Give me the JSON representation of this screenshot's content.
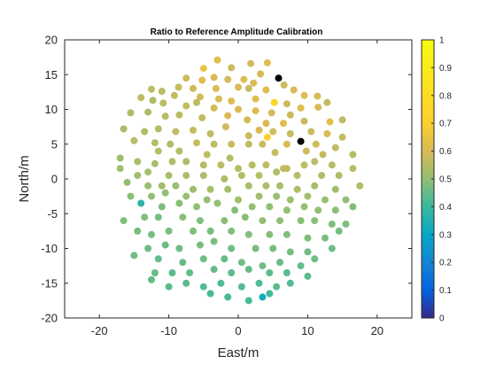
{
  "chart_data": {
    "type": "scatter",
    "title": "Ratio to Reference Amplitude Calibration",
    "xlabel": "East/m",
    "ylabel": "North/m",
    "xlim": [
      -25,
      25
    ],
    "ylim": [
      -20,
      20
    ],
    "xticks": [
      "-20",
      "-10",
      "0",
      "10",
      "20"
    ],
    "yticks": [
      "-20",
      "-15",
      "-10",
      "-5",
      "0",
      "5",
      "10",
      "15",
      "20"
    ],
    "colorbar": {
      "range": [
        0,
        1
      ],
      "ticks": [
        "0",
        "0.1",
        "0.2",
        "0.3",
        "0.4",
        "0.5",
        "0.6",
        "0.7",
        "0.8",
        "0.9",
        "1"
      ],
      "colormap": "parula",
      "location": "right"
    },
    "grid": false,
    "flagged_color": "#000000",
    "points": [
      [
        -3.0,
        17.1,
        0.62
      ],
      [
        1.8,
        16.6,
        0.59
      ],
      [
        4.2,
        16.7,
        0.62
      ],
      [
        -5.0,
        15.9,
        0.65
      ],
      [
        -1.0,
        16.0,
        0.58
      ],
      [
        0.8,
        14.3,
        0.61
      ],
      [
        3.2,
        15.1,
        0.6
      ],
      [
        5.8,
        14.5,
        null
      ],
      [
        -7.5,
        14.5,
        0.58
      ],
      [
        -3.5,
        14.6,
        0.6
      ],
      [
        -5.2,
        14.2,
        0.62
      ],
      [
        -1.5,
        14.3,
        0.59
      ],
      [
        2.2,
        13.8,
        0.6
      ],
      [
        -8.6,
        13.2,
        0.57
      ],
      [
        -6.5,
        13.0,
        0.58
      ],
      [
        -3.2,
        13.0,
        0.61
      ],
      [
        0.0,
        13.2,
        0.6
      ],
      [
        1.5,
        13.0,
        0.57
      ],
      [
        4.0,
        12.8,
        0.62
      ],
      [
        6.6,
        13.5,
        0.58
      ],
      [
        8.0,
        12.8,
        0.6
      ],
      [
        -12.5,
        12.9,
        0.56
      ],
      [
        -11.0,
        12.6,
        0.55
      ],
      [
        -9.2,
        12.0,
        0.57
      ],
      [
        -5.5,
        11.8,
        0.59
      ],
      [
        -2.8,
        11.5,
        0.6
      ],
      [
        -1.0,
        11.2,
        0.61
      ],
      [
        2.5,
        11.5,
        0.62
      ],
      [
        5.2,
        11.0,
        0.75
      ],
      [
        7.0,
        10.8,
        0.58
      ],
      [
        9.5,
        12.0,
        0.61
      ],
      [
        11.4,
        11.9,
        0.6
      ],
      [
        12.8,
        11.0,
        0.57
      ],
      [
        -14.0,
        11.7,
        0.56
      ],
      [
        -12.3,
        11.3,
        0.54
      ],
      [
        -10.8,
        10.9,
        0.56
      ],
      [
        -7.5,
        10.5,
        0.57
      ],
      [
        -6.0,
        11.0,
        0.56
      ],
      [
        -3.5,
        10.2,
        0.59
      ],
      [
        0.0,
        10.0,
        0.6
      ],
      [
        2.5,
        9.8,
        0.61
      ],
      [
        4.8,
        9.5,
        0.59
      ],
      [
        7.5,
        9.2,
        0.58
      ],
      [
        9.0,
        10.2,
        0.62
      ],
      [
        11.5,
        10.3,
        0.6
      ],
      [
        -15.5,
        9.5,
        0.54
      ],
      [
        -13.0,
        9.6,
        0.53
      ],
      [
        -10.5,
        9.0,
        0.55
      ],
      [
        -8.5,
        9.2,
        0.56
      ],
      [
        -5.2,
        8.8,
        0.57
      ],
      [
        -1.5,
        9.1,
        0.6
      ],
      [
        1.3,
        8.5,
        0.59
      ],
      [
        4.0,
        8.0,
        0.6
      ],
      [
        6.5,
        8.0,
        0.62
      ],
      [
        9.5,
        8.3,
        0.58
      ],
      [
        13.2,
        8.2,
        0.63
      ],
      [
        15.0,
        8.5,
        0.56
      ],
      [
        -16.5,
        7.2,
        0.53
      ],
      [
        -13.5,
        6.8,
        0.54
      ],
      [
        -11.5,
        7.2,
        0.55
      ],
      [
        -9.0,
        6.8,
        0.56
      ],
      [
        -6.5,
        7.0,
        0.57
      ],
      [
        -4.0,
        6.5,
        0.56
      ],
      [
        -1.8,
        7.5,
        0.59
      ],
      [
        1.5,
        6.2,
        0.58
      ],
      [
        3.0,
        7.0,
        0.6
      ],
      [
        5.0,
        6.8,
        0.59
      ],
      [
        7.5,
        6.5,
        0.57
      ],
      [
        10.5,
        6.8,
        0.58
      ],
      [
        12.8,
        6.5,
        0.6
      ],
      [
        15.0,
        6.0,
        0.57
      ],
      [
        4.2,
        6.0,
        0.71
      ],
      [
        9.0,
        5.4,
        null
      ],
      [
        -15.0,
        5.5,
        0.55
      ],
      [
        -12.0,
        5.2,
        0.55
      ],
      [
        -9.8,
        5.0,
        0.54
      ],
      [
        -6.0,
        5.2,
        0.57
      ],
      [
        -3.5,
        5.0,
        0.56
      ],
      [
        -1.0,
        5.0,
        0.57
      ],
      [
        1.5,
        5.0,
        0.56
      ],
      [
        3.5,
        5.0,
        0.58
      ],
      [
        7.0,
        5.0,
        0.6
      ],
      [
        11.2,
        5.0,
        0.59
      ],
      [
        14.0,
        4.5,
        0.56
      ],
      [
        -11.5,
        4.0,
        0.55
      ],
      [
        -8.5,
        4.0,
        0.54
      ],
      [
        -4.5,
        3.5,
        0.56
      ],
      [
        -1.2,
        3.0,
        0.55
      ],
      [
        5.3,
        3.8,
        0.57
      ],
      [
        9.8,
        4.0,
        0.58
      ],
      [
        12.2,
        3.5,
        0.57
      ],
      [
        16.5,
        3.5,
        0.55
      ],
      [
        -17.0,
        3.0,
        0.52
      ],
      [
        -14.5,
        2.5,
        0.53
      ],
      [
        -12.0,
        2.2,
        0.53
      ],
      [
        -9.5,
        2.5,
        0.54
      ],
      [
        -7.5,
        2.5,
        0.54
      ],
      [
        -5.0,
        2.0,
        0.55
      ],
      [
        -2.5,
        2.0,
        0.56
      ],
      [
        0.0,
        1.5,
        0.55
      ],
      [
        2.0,
        2.0,
        0.55
      ],
      [
        4.0,
        2.0,
        0.56
      ],
      [
        6.5,
        1.5,
        0.57
      ],
      [
        9.5,
        2.0,
        0.56
      ],
      [
        11.0,
        2.5,
        0.56
      ],
      [
        13.5,
        2.0,
        0.55
      ],
      [
        16.5,
        1.5,
        0.56
      ],
      [
        -17.0,
        1.5,
        0.52
      ],
      [
        -14.5,
        0.5,
        0.52
      ],
      [
        -13.0,
        1.0,
        0.53
      ],
      [
        -10.0,
        0.5,
        0.53
      ],
      [
        -7.5,
        0.5,
        0.53
      ],
      [
        -5.0,
        0.5,
        0.53
      ],
      [
        -2.0,
        0.0,
        0.54
      ],
      [
        0.5,
        0.5,
        0.54
      ],
      [
        3.0,
        0.5,
        0.55
      ],
      [
        5.5,
        1.0,
        0.54
      ],
      [
        7.0,
        1.5,
        0.56
      ],
      [
        8.5,
        0.5,
        0.55
      ],
      [
        12.0,
        0.5,
        0.54
      ],
      [
        14.5,
        0.5,
        0.54
      ],
      [
        17.5,
        -1.0,
        0.55
      ],
      [
        -16.0,
        -0.5,
        0.5
      ],
      [
        -13.0,
        -1.0,
        0.51
      ],
      [
        -11.0,
        -1.0,
        0.52
      ],
      [
        -9.0,
        -1.0,
        0.51
      ],
      [
        -6.5,
        -1.5,
        0.52
      ],
      [
        -4.0,
        -1.5,
        0.53
      ],
      [
        -1.5,
        -1.5,
        0.53
      ],
      [
        1.5,
        -1.0,
        0.53
      ],
      [
        4.0,
        -1.0,
        0.54
      ],
      [
        6.0,
        -1.0,
        0.53
      ],
      [
        8.5,
        -1.5,
        0.54
      ],
      [
        11.0,
        -1.0,
        0.53
      ],
      [
        14.0,
        -1.5,
        0.52
      ],
      [
        -15.5,
        -2.5,
        0.49
      ],
      [
        -12.5,
        -2.5,
        0.5
      ],
      [
        -10.5,
        -2.0,
        0.5
      ],
      [
        -7.5,
        -2.5,
        0.51
      ],
      [
        -4.5,
        -3.0,
        0.51
      ],
      [
        0.0,
        -3.0,
        0.52
      ],
      [
        3.0,
        -2.5,
        0.52
      ],
      [
        5.5,
        -2.5,
        0.51
      ],
      [
        7.5,
        -3.0,
        0.52
      ],
      [
        10.0,
        -2.5,
        0.52
      ],
      [
        12.5,
        -3.0,
        0.51
      ],
      [
        15.5,
        -3.0,
        0.5
      ],
      [
        -14.0,
        -3.5,
        0.38
      ],
      [
        -11.0,
        -4.0,
        0.48
      ],
      [
        -8.5,
        -3.5,
        0.49
      ],
      [
        -6.0,
        -4.0,
        0.5
      ],
      [
        -3.0,
        -3.5,
        0.5
      ],
      [
        -0.5,
        -4.5,
        0.49
      ],
      [
        2.0,
        -4.0,
        0.5
      ],
      [
        4.5,
        -4.0,
        0.5
      ],
      [
        7.0,
        -4.5,
        0.5
      ],
      [
        9.5,
        -4.0,
        0.51
      ],
      [
        11.5,
        -4.5,
        0.5
      ],
      [
        14.0,
        -4.5,
        0.49
      ],
      [
        16.5,
        -4.0,
        0.48
      ],
      [
        -16.5,
        -6.0,
        0.48
      ],
      [
        -13.5,
        -5.5,
        0.48
      ],
      [
        -11.5,
        -5.5,
        0.47
      ],
      [
        -8.0,
        -5.5,
        0.49
      ],
      [
        -5.5,
        -6.0,
        0.48
      ],
      [
        -2.0,
        -6.0,
        0.49
      ],
      [
        1.0,
        -5.5,
        0.49
      ],
      [
        3.5,
        -6.0,
        0.5
      ],
      [
        6.0,
        -6.0,
        0.5
      ],
      [
        9.0,
        -6.0,
        0.49
      ],
      [
        11.0,
        -6.0,
        0.49
      ],
      [
        13.5,
        -6.5,
        0.48
      ],
      [
        15.5,
        -6.5,
        0.48
      ],
      [
        -14.5,
        -7.5,
        0.47
      ],
      [
        -12.5,
        -8.0,
        0.47
      ],
      [
        -10.0,
        -7.5,
        0.47
      ],
      [
        -6.5,
        -7.5,
        0.48
      ],
      [
        -4.0,
        -7.5,
        0.47
      ],
      [
        -1.0,
        -7.5,
        0.48
      ],
      [
        1.5,
        -8.0,
        0.48
      ],
      [
        4.5,
        -8.0,
        0.49
      ],
      [
        7.0,
        -8.0,
        0.48
      ],
      [
        10.0,
        -8.5,
        0.48
      ],
      [
        12.5,
        -8.5,
        0.47
      ],
      [
        14.5,
        -7.5,
        0.47
      ],
      [
        -13.0,
        -10.0,
        0.46
      ],
      [
        -10.5,
        -9.5,
        0.46
      ],
      [
        -8.5,
        -10.0,
        0.46
      ],
      [
        -5.5,
        -9.5,
        0.47
      ],
      [
        -3.5,
        -9.0,
        0.47
      ],
      [
        -1.0,
        -10.0,
        0.46
      ],
      [
        2.5,
        -10.0,
        0.47
      ],
      [
        5.0,
        -10.0,
        0.47
      ],
      [
        7.5,
        -10.5,
        0.47
      ],
      [
        10.0,
        -10.5,
        0.46
      ],
      [
        13.5,
        -10.0,
        0.46
      ],
      [
        -15.0,
        -11.0,
        0.46
      ],
      [
        -11.5,
        -11.5,
        0.45
      ],
      [
        -8.0,
        -12.0,
        0.45
      ],
      [
        -5.0,
        -11.5,
        0.46
      ],
      [
        -2.0,
        -11.5,
        0.45
      ],
      [
        0.5,
        -12.0,
        0.46
      ],
      [
        3.5,
        -12.5,
        0.46
      ],
      [
        6.0,
        -12.0,
        0.45
      ],
      [
        9.0,
        -12.5,
        0.45
      ],
      [
        11.0,
        -11.5,
        0.46
      ],
      [
        -12.0,
        -13.5,
        0.45
      ],
      [
        -9.5,
        -13.5,
        0.44
      ],
      [
        -7.0,
        -13.5,
        0.45
      ],
      [
        -3.5,
        -13.0,
        0.45
      ],
      [
        -1.0,
        -13.5,
        0.44
      ],
      [
        1.5,
        -13.0,
        0.45
      ],
      [
        4.5,
        -13.5,
        0.44
      ],
      [
        7.0,
        -13.5,
        0.44
      ],
      [
        10.0,
        -14.0,
        0.44
      ],
      [
        -10.0,
        -15.5,
        0.44
      ],
      [
        -7.5,
        -15.0,
        0.44
      ],
      [
        -5.0,
        -15.5,
        0.43
      ],
      [
        -2.5,
        -15.0,
        0.43
      ],
      [
        0.5,
        -15.5,
        0.43
      ],
      [
        3.0,
        -15.0,
        0.43
      ],
      [
        5.5,
        -15.5,
        0.44
      ],
      [
        7.5,
        -15.0,
        0.43
      ],
      [
        -4.0,
        -16.5,
        0.42
      ],
      [
        -1.5,
        -17.0,
        0.42
      ],
      [
        1.5,
        -17.5,
        0.42
      ],
      [
        4.5,
        -16.5,
        0.41
      ],
      [
        3.5,
        -17.0,
        0.33
      ],
      [
        -12.5,
        -14.5,
        0.45
      ]
    ]
  }
}
